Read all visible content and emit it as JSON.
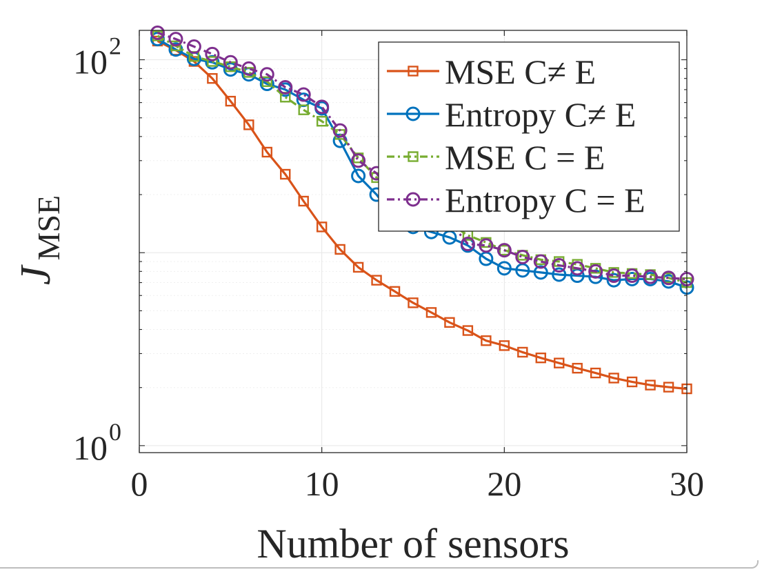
{
  "chart_data": {
    "type": "line",
    "title": "",
    "xlabel": "Number of sensors",
    "ylabel": "J",
    "ylabel_subscript": "MSE",
    "x_ticks": [
      "0",
      "10",
      "20",
      "30"
    ],
    "y_ticks": [
      {
        "base": "10",
        "exp": "0"
      },
      {
        "base": "10",
        "exp": "2"
      }
    ],
    "xlim": [
      0,
      30
    ],
    "ylim": [
      0.92,
      142
    ],
    "y_scale": "log",
    "grid": true,
    "legend_position": "top-right",
    "x": [
      1,
      2,
      3,
      4,
      5,
      6,
      7,
      8,
      9,
      10,
      11,
      12,
      13,
      14,
      15,
      16,
      17,
      18,
      19,
      20,
      21,
      22,
      23,
      24,
      25,
      26,
      27,
      28,
      29,
      30
    ],
    "series": [
      {
        "name": "MSE C≠ E",
        "color": "#D95319",
        "line_style": "solid",
        "marker": "square",
        "values": [
          125,
          112,
          98,
          80,
          61,
          46,
          33.2,
          25.5,
          18.5,
          13.6,
          10.4,
          8.4,
          7.2,
          6.3,
          5.5,
          4.9,
          4.35,
          3.95,
          3.5,
          3.3,
          3.05,
          2.85,
          2.68,
          2.52,
          2.38,
          2.24,
          2.14,
          2.06,
          2.01,
          1.97
        ]
      },
      {
        "name": "Entropy C≠ E",
        "color": "#0072BD",
        "line_style": "solid",
        "marker": "circle",
        "values": [
          128,
          113,
          101,
          97,
          89,
          84,
          75,
          70,
          62,
          56,
          38,
          25,
          20,
          15,
          13.6,
          12.8,
          12.0,
          10.9,
          9.3,
          8.3,
          8.1,
          7.9,
          7.7,
          7.6,
          7.5,
          7.2,
          7.3,
          7.3,
          7.1,
          6.6
        ]
      },
      {
        "name": "MSE C = E",
        "color": "#77AC30",
        "line_style": "dashed",
        "marker": "square",
        "values": [
          133,
          118,
          104,
          98,
          92,
          86,
          77,
          64,
          55,
          48,
          41,
          31,
          24.5,
          20.5,
          18.6,
          16.8,
          14.2,
          12.3,
          11.3,
          10.3,
          9.7,
          9.2,
          9.0,
          8.7,
          8.3,
          7.9,
          7.8,
          7.7,
          7.4,
          7.0
        ]
      },
      {
        "name": "Entropy C = E",
        "color": "#7E2F8E",
        "line_style": "dashed",
        "marker": "circle",
        "values": [
          138,
          128,
          117,
          107,
          97,
          90,
          84,
          72,
          66,
          57,
          43,
          30,
          25.8,
          19.3,
          17.9,
          15.6,
          14.5,
          11.1,
          10.9,
          10.3,
          9.5,
          9.0,
          8.6,
          8.3,
          8.0,
          7.6,
          7.6,
          7.5,
          7.4,
          7.3
        ]
      }
    ]
  }
}
